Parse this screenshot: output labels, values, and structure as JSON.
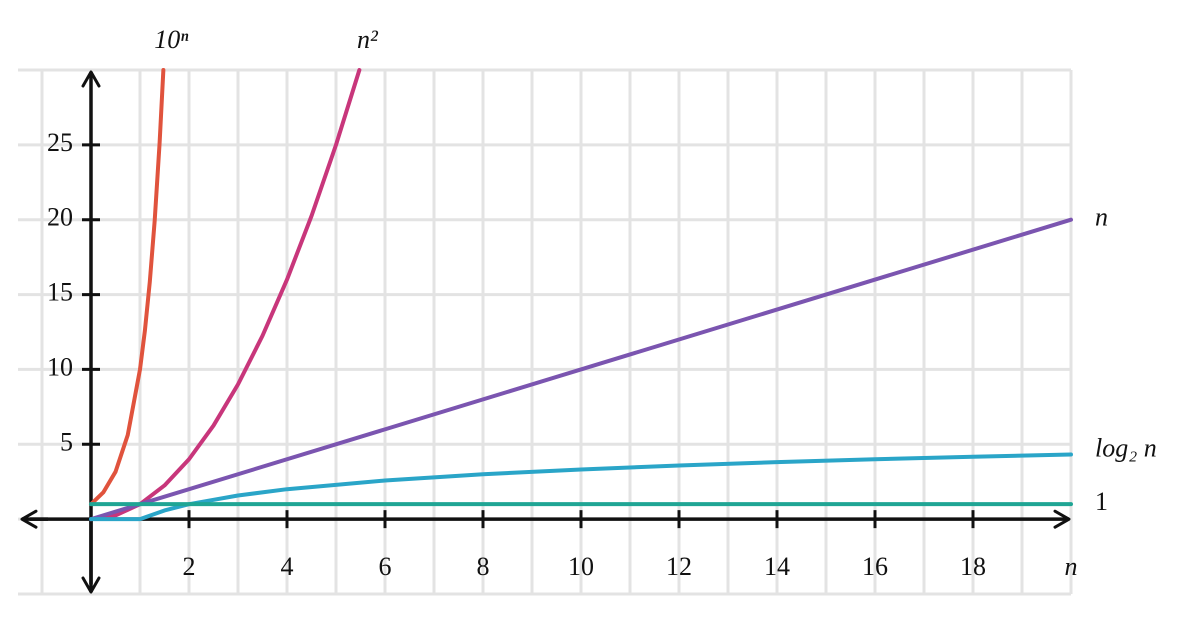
{
  "chart_data": {
    "type": "line",
    "x_label": "n",
    "xlim": [
      -1,
      20
    ],
    "ylim": [
      -5,
      30
    ],
    "xticks": [
      2,
      4,
      6,
      8,
      10,
      12,
      14,
      16,
      18
    ],
    "yticks": [
      5,
      10,
      15,
      20,
      25
    ],
    "x_gridlines": [
      -1,
      0,
      1,
      2,
      3,
      4,
      5,
      6,
      7,
      8,
      9,
      10,
      11,
      12,
      13,
      14,
      15,
      16,
      17,
      18,
      19,
      20
    ],
    "y_gridlines": [
      -5,
      0,
      5,
      10,
      15,
      20,
      25,
      30
    ],
    "grid": true,
    "series": [
      {
        "name": "10ⁿ",
        "color": "#e0533d",
        "x": [
          0,
          0.25,
          0.5,
          0.75,
          1,
          1.1,
          1.2,
          1.3,
          1.4,
          1.477
        ],
        "values": [
          1,
          1.78,
          3.16,
          5.62,
          10,
          12.59,
          15.85,
          19.95,
          25.12,
          30
        ]
      },
      {
        "name": "n²",
        "color": "#c8367b",
        "x": [
          0,
          0.5,
          1,
          1.5,
          2,
          2.5,
          3,
          3.5,
          4,
          4.5,
          5,
          5.477
        ],
        "values": [
          0,
          0.25,
          1,
          2.25,
          4,
          6.25,
          9,
          12.25,
          16,
          20.25,
          25,
          30
        ]
      },
      {
        "name": "n",
        "color": "#7b55b0",
        "x": [
          0,
          20
        ],
        "values": [
          0,
          20
        ]
      },
      {
        "name": "log₂ n",
        "color": "#2aa5c8",
        "x": [
          0,
          1,
          1.5,
          2,
          3,
          4,
          6,
          8,
          10,
          12,
          14,
          16,
          18,
          20
        ],
        "values": [
          0,
          0,
          0.58,
          1,
          1.58,
          2,
          2.58,
          3,
          3.32,
          3.58,
          3.81,
          4,
          4.17,
          4.32
        ]
      },
      {
        "name": "1",
        "color": "#1fa594",
        "x": [
          0,
          20
        ],
        "values": [
          1,
          1
        ]
      }
    ]
  }
}
